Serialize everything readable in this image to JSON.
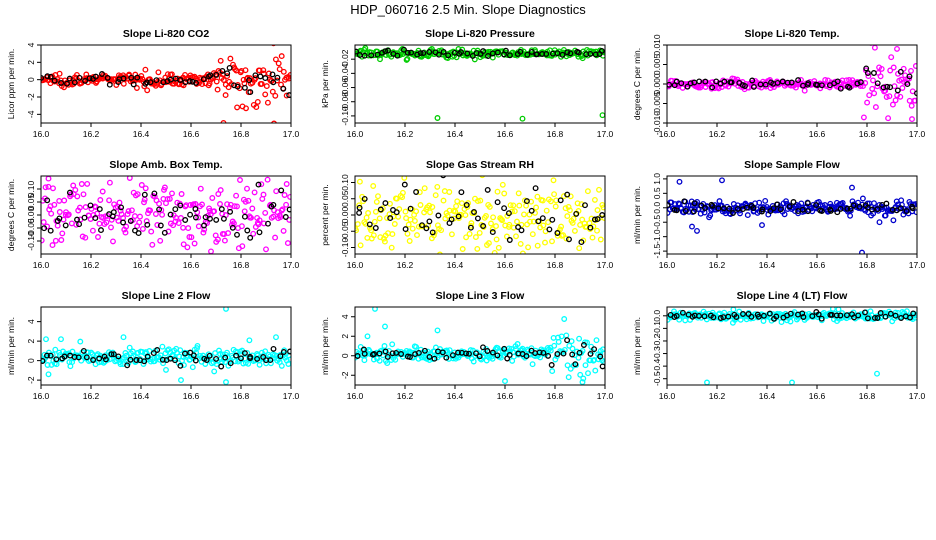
{
  "figure": {
    "title": "HDP_060716  2.5 Min. Slope Diagnostics"
  },
  "chart_data": [
    {
      "type": "scatter",
      "title": "Slope Li-820 CO2",
      "ylabel": "Licor ppm per min.",
      "color": "#ff0000",
      "xlim": [
        16.0,
        17.0
      ],
      "ylim": [
        -5,
        4
      ],
      "xticks": [
        "16.0",
        "16.2",
        "16.4",
        "16.6",
        "16.8",
        "17.0"
      ],
      "yticks": [
        "-4",
        "-2",
        "0",
        "2",
        "4"
      ],
      "n_points": 230,
      "spread": 0.35,
      "center": 0.0,
      "noisy_start": 16.7,
      "noisy_spread": 1.5,
      "outliers": [
        [
          16.93,
          4.2
        ],
        [
          16.73,
          -5.0
        ],
        [
          16.82,
          -3.3
        ]
      ]
    },
    {
      "type": "scatter",
      "title": "Slope Li-820 Pressure",
      "ylabel": "kPa per min.",
      "color": "#00cc00",
      "xlim": [
        16.0,
        17.0
      ],
      "ylim": [
        -0.11,
        0.0
      ],
      "xticks": [
        "16.0",
        "16.2",
        "16.4",
        "16.6",
        "16.8",
        "17.0"
      ],
      "yticks": [
        "-0.10",
        "-0.08",
        "-0.06",
        "-0.04",
        "-0.02"
      ],
      "n_points": 230,
      "spread": 0.003,
      "center": -0.012,
      "noisy_start": 17.1,
      "noisy_spread": 0.003,
      "outliers": [
        [
          16.33,
          -0.103
        ],
        [
          16.67,
          -0.104
        ],
        [
          16.99,
          -0.099
        ],
        [
          16.1,
          -0.02
        ]
      ]
    },
    {
      "type": "scatter",
      "title": "Slope Li-820 Temp.",
      "ylabel": "degrees C per min.",
      "color": "#ff00ff",
      "xlim": [
        16.0,
        17.0
      ],
      "ylim": [
        -0.01,
        0.01
      ],
      "xticks": [
        "16.0",
        "16.2",
        "16.4",
        "16.6",
        "16.8",
        "17.0"
      ],
      "yticks": [
        "-0.010",
        "-0.005",
        "0.000",
        "0.005",
        "0.010"
      ],
      "n_points": 230,
      "spread": 0.0006,
      "center": 0.0,
      "noisy_start": 16.78,
      "noisy_spread": 0.004,
      "outliers": [
        [
          16.92,
          0.009
        ],
        [
          16.98,
          -0.009
        ]
      ]
    },
    {
      "type": "scatter",
      "title": "Slope Amb. Box Temp.",
      "ylabel": "degrees C per min.",
      "color": "#ff00ff",
      "xlim": [
        16.0,
        17.0
      ],
      "ylim": [
        -0.15,
        0.15
      ],
      "xticks": [
        "16.0",
        "16.2",
        "16.4",
        "16.6",
        "16.8",
        "17.0"
      ],
      "yticks": [
        "-0.10",
        "-0.05",
        "0.00",
        "0.05",
        "0.10"
      ],
      "n_points": 230,
      "spread": 0.06,
      "center": 0.0,
      "noisy_start": 17.1,
      "noisy_spread": 0.06,
      "outliers": [
        [
          16.03,
          0.14
        ],
        [
          16.68,
          -0.14
        ]
      ]
    },
    {
      "type": "scatter",
      "title": "Slope Gas Stream RH",
      "ylabel": "percent per min.",
      "color": "#ffff00",
      "xlim": [
        16.0,
        17.0
      ],
      "ylim": [
        -0.12,
        0.12
      ],
      "xticks": [
        "16.0",
        "16.2",
        "16.4",
        "16.6",
        "16.8",
        "17.0"
      ],
      "yticks": [
        "-0.10",
        "-0.05",
        "0.00",
        "0.05",
        "0.10"
      ],
      "n_points": 230,
      "spread": 0.055,
      "center": 0.0,
      "noisy_start": 17.1,
      "noisy_spread": 0.055,
      "outliers": []
    },
    {
      "type": "scatter",
      "title": "Slope Sample Flow",
      "ylabel": "ml/min per min.",
      "color": "#0000cc",
      "xlim": [
        16.0,
        17.0
      ],
      "ylim": [
        -1.6,
        1.1
      ],
      "xticks": [
        "16.0",
        "16.2",
        "16.4",
        "16.6",
        "16.8",
        "17.0"
      ],
      "yticks": [
        "-1.5",
        "-1.0",
        "-0.5",
        "0.0",
        "0.5",
        "1.0"
      ],
      "n_points": 230,
      "spread": 0.12,
      "center": 0.0,
      "noisy_start": 17.1,
      "noisy_spread": 0.12,
      "outliers": [
        [
          16.05,
          0.9
        ],
        [
          16.12,
          -0.8
        ],
        [
          16.22,
          0.95
        ],
        [
          16.38,
          -0.6
        ],
        [
          16.74,
          0.7
        ],
        [
          16.78,
          -1.55
        ],
        [
          16.85,
          -0.5
        ],
        [
          16.1,
          -0.65
        ]
      ]
    },
    {
      "type": "scatter",
      "title": "Slope Line 2 Flow",
      "ylabel": "ml/min per min.",
      "color": "#00ffff",
      "xlim": [
        16.0,
        17.0
      ],
      "ylim": [
        -2.5,
        5.5
      ],
      "xticks": [
        "16.0",
        "16.2",
        "16.4",
        "16.6",
        "16.8",
        "17.0"
      ],
      "yticks": [
        "-2",
        "0",
        "2",
        "4"
      ],
      "n_points": 230,
      "spread": 0.45,
      "center": 0.3,
      "noisy_start": 17.1,
      "noisy_spread": 0.45,
      "outliers": [
        [
          16.74,
          5.3
        ],
        [
          16.02,
          2.2
        ],
        [
          16.08,
          2.2
        ],
        [
          16.33,
          2.4
        ],
        [
          16.94,
          2.4
        ],
        [
          16.74,
          -2.2
        ],
        [
          16.56,
          -2.0
        ],
        [
          16.03,
          -1.4
        ]
      ]
    },
    {
      "type": "scatter",
      "title": "Slope Line 3 Flow",
      "ylabel": "ml/min per min.",
      "color": "#00ffff",
      "xlim": [
        16.0,
        17.0
      ],
      "ylim": [
        -3,
        5
      ],
      "xticks": [
        "16.0",
        "16.2",
        "16.4",
        "16.6",
        "16.8",
        "17.0"
      ],
      "yticks": [
        "-2",
        "0",
        "2",
        "4"
      ],
      "n_points": 230,
      "spread": 0.35,
      "center": 0.2,
      "noisy_start": 16.78,
      "noisy_spread": 1.3,
      "outliers": [
        [
          16.08,
          4.8
        ],
        [
          16.33,
          2.6
        ],
        [
          16.05,
          2.0
        ],
        [
          16.12,
          3.0
        ],
        [
          16.6,
          -2.6
        ],
        [
          16.91,
          -2.7
        ]
      ]
    },
    {
      "type": "scatter",
      "title": "Slope Line 4 (LT) Flow",
      "ylabel": "ml/min per min.",
      "color": "#00ffff",
      "xlim": [
        16.0,
        17.0
      ],
      "ylim": [
        -0.55,
        0.07
      ],
      "xticks": [
        "16.0",
        "16.2",
        "16.4",
        "16.6",
        "16.8",
        "17.0"
      ],
      "yticks": [
        "-0.5",
        "-0.4",
        "-0.3",
        "-0.2",
        "-0.1",
        "0.0"
      ],
      "n_points": 230,
      "spread": 0.018,
      "center": 0.0,
      "noisy_start": 17.1,
      "noisy_spread": 0.018,
      "outliers": [
        [
          16.16,
          -0.53
        ],
        [
          16.5,
          -0.53
        ],
        [
          16.84,
          -0.46
        ]
      ]
    }
  ]
}
